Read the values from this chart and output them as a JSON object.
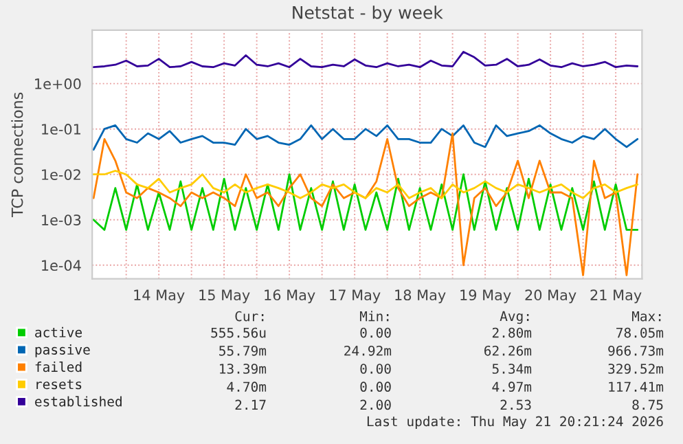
{
  "chart_data": {
    "type": "line",
    "title": "Netstat - by week",
    "ylabel": "TCP connections",
    "log": "y",
    "grid": true,
    "legend": "bottom",
    "ylim": [
      5e-05,
      15
    ],
    "yticks": [
      {
        "value": 0.0001,
        "label": "1e-04"
      },
      {
        "value": 0.001,
        "label": "1e-03"
      },
      {
        "value": 0.01,
        "label": "1e-02"
      },
      {
        "value": 0.1,
        "label": "1e-01"
      },
      {
        "value": 1,
        "label": "1e+00"
      }
    ],
    "xlim": [
      "2026-05-13T11:30",
      "2026-05-21T21:40"
    ],
    "xticks": [
      {
        "value": "2026-05-14T00:00",
        "label": null
      },
      {
        "value": "2026-05-14T12:00",
        "label": "14 May"
      },
      {
        "value": "2026-05-15T00:00",
        "label": null
      },
      {
        "value": "2026-05-15T12:00",
        "label": "15 May"
      },
      {
        "value": "2026-05-16T00:00",
        "label": null
      },
      {
        "value": "2026-05-16T12:00",
        "label": "16 May"
      },
      {
        "value": "2026-05-17T00:00",
        "label": null
      },
      {
        "value": "2026-05-17T12:00",
        "label": "17 May"
      },
      {
        "value": "2026-05-18T00:00",
        "label": null
      },
      {
        "value": "2026-05-18T12:00",
        "label": "18 May"
      },
      {
        "value": "2026-05-19T00:00",
        "label": null
      },
      {
        "value": "2026-05-19T12:00",
        "label": "19 May"
      },
      {
        "value": "2026-05-20T00:00",
        "label": null
      },
      {
        "value": "2026-05-20T12:00",
        "label": "20 May"
      },
      {
        "value": "2026-05-21T00:00",
        "label": null
      },
      {
        "value": "2026-05-21T12:00",
        "label": "21 May"
      }
    ],
    "x": [
      "2026-05-13T12:00",
      "2026-05-13T16:00",
      "2026-05-13T20:00",
      "2026-05-14T00:00",
      "2026-05-14T04:00",
      "2026-05-14T08:00",
      "2026-05-14T12:00",
      "2026-05-14T16:00",
      "2026-05-14T20:00",
      "2026-05-15T00:00",
      "2026-05-15T04:00",
      "2026-05-15T08:00",
      "2026-05-15T12:00",
      "2026-05-15T16:00",
      "2026-05-15T20:00",
      "2026-05-16T00:00",
      "2026-05-16T04:00",
      "2026-05-16T08:00",
      "2026-05-16T12:00",
      "2026-05-16T16:00",
      "2026-05-16T20:00",
      "2026-05-17T00:00",
      "2026-05-17T04:00",
      "2026-05-17T08:00",
      "2026-05-17T12:00",
      "2026-05-17T16:00",
      "2026-05-17T20:00",
      "2026-05-18T00:00",
      "2026-05-18T04:00",
      "2026-05-18T08:00",
      "2026-05-18T12:00",
      "2026-05-18T16:00",
      "2026-05-18T20:00",
      "2026-05-19T00:00",
      "2026-05-19T04:00",
      "2026-05-19T08:00",
      "2026-05-19T12:00",
      "2026-05-19T16:00",
      "2026-05-19T20:00",
      "2026-05-20T00:00",
      "2026-05-20T04:00",
      "2026-05-20T08:00",
      "2026-05-20T12:00",
      "2026-05-20T16:00",
      "2026-05-20T20:00",
      "2026-05-21T00:00",
      "2026-05-21T04:00",
      "2026-05-21T08:00",
      "2026-05-21T12:00",
      "2026-05-21T16:00",
      "2026-05-21T20:00"
    ],
    "series": [
      {
        "name": "active",
        "color": "#00cc00",
        "values": [
          0.001,
          0.0006,
          0.005,
          0.0006,
          0.006,
          0.0006,
          0.004,
          0.0006,
          0.007,
          0.0006,
          0.005,
          0.0006,
          0.008,
          0.0006,
          0.005,
          0.0006,
          0.006,
          0.0006,
          0.01,
          0.0006,
          0.005,
          0.0006,
          0.007,
          0.0006,
          0.006,
          0.0006,
          0.004,
          0.0006,
          0.008,
          0.0006,
          0.005,
          0.0006,
          0.006,
          0.0006,
          0.01,
          0.0006,
          0.007,
          0.0006,
          0.005,
          0.0006,
          0.008,
          0.0006,
          0.006,
          0.0006,
          0.005,
          0.0006,
          0.007,
          0.0006,
          0.006,
          0.0006,
          0.0006
        ]
      },
      {
        "name": "passive",
        "color": "#0066b3",
        "values": [
          0.035,
          0.1,
          0.12,
          0.06,
          0.05,
          0.08,
          0.06,
          0.09,
          0.05,
          0.06,
          0.07,
          0.05,
          0.05,
          0.045,
          0.1,
          0.06,
          0.07,
          0.05,
          0.045,
          0.06,
          0.12,
          0.06,
          0.1,
          0.06,
          0.06,
          0.1,
          0.07,
          0.12,
          0.06,
          0.06,
          0.05,
          0.05,
          0.1,
          0.07,
          0.12,
          0.05,
          0.04,
          0.12,
          0.07,
          0.08,
          0.09,
          0.12,
          0.08,
          0.06,
          0.05,
          0.07,
          0.06,
          0.1,
          0.06,
          0.04,
          0.06
        ]
      },
      {
        "name": "failed",
        "color": "#ff8000",
        "values": [
          0.003,
          0.06,
          0.02,
          0.004,
          0.003,
          0.005,
          0.004,
          0.003,
          0.002,
          0.004,
          0.003,
          0.004,
          0.003,
          0.002,
          0.01,
          0.003,
          0.004,
          0.002,
          0.005,
          0.01,
          0.003,
          0.002,
          0.006,
          0.003,
          0.004,
          0.003,
          0.007,
          0.06,
          0.005,
          0.002,
          0.003,
          0.004,
          0.003,
          0.08,
          0.0001,
          0.003,
          0.005,
          0.002,
          0.004,
          0.02,
          0.003,
          0.02,
          0.004,
          0.004,
          0.003,
          6e-05,
          0.02,
          0.003,
          0.004,
          6e-05,
          0.01
        ]
      },
      {
        "name": "resets",
        "color": "#ffcc00",
        "values": [
          0.01,
          0.01,
          0.012,
          0.01,
          0.006,
          0.005,
          0.008,
          0.004,
          0.005,
          0.006,
          0.01,
          0.005,
          0.004,
          0.006,
          0.004,
          0.005,
          0.006,
          0.005,
          0.004,
          0.003,
          0.004,
          0.006,
          0.005,
          0.006,
          0.004,
          0.003,
          0.005,
          0.004,
          0.006,
          0.003,
          0.004,
          0.005,
          0.003,
          0.006,
          0.004,
          0.005,
          0.007,
          0.005,
          0.004,
          0.006,
          0.005,
          0.004,
          0.005,
          0.006,
          0.004,
          0.003,
          0.005,
          0.006,
          0.004,
          0.005,
          0.006
        ]
      },
      {
        "name": "established",
        "color": "#330099",
        "values": [
          2.3,
          2.4,
          2.6,
          3.2,
          2.4,
          2.5,
          3.5,
          2.3,
          2.4,
          3.0,
          2.4,
          2.3,
          2.8,
          2.5,
          4.2,
          2.6,
          2.4,
          2.8,
          2.3,
          3.5,
          2.4,
          2.3,
          2.6,
          2.4,
          3.4,
          2.5,
          2.3,
          2.8,
          2.4,
          2.6,
          2.3,
          3.2,
          2.5,
          2.4,
          5.0,
          3.8,
          2.5,
          2.6,
          3.5,
          2.4,
          2.6,
          3.4,
          2.5,
          2.3,
          2.8,
          2.4,
          2.6,
          3.0,
          2.3,
          2.5,
          2.4
        ]
      }
    ],
    "annotations": [
      "Cur:",
      "Min:",
      "Avg:",
      "Max:",
      "555.56u",
      "0.00",
      "2.80m",
      "78.05m",
      "55.79m",
      "24.92m",
      "62.26m",
      "966.73m",
      "13.39m",
      "0.00",
      "5.34m",
      "329.52m",
      "4.70m",
      "0.00",
      "4.97m",
      "117.41m",
      "2.17",
      "2.00",
      "2.53",
      "8.75",
      "Last update: Thu May 21 20:21:24 2026"
    ]
  }
}
